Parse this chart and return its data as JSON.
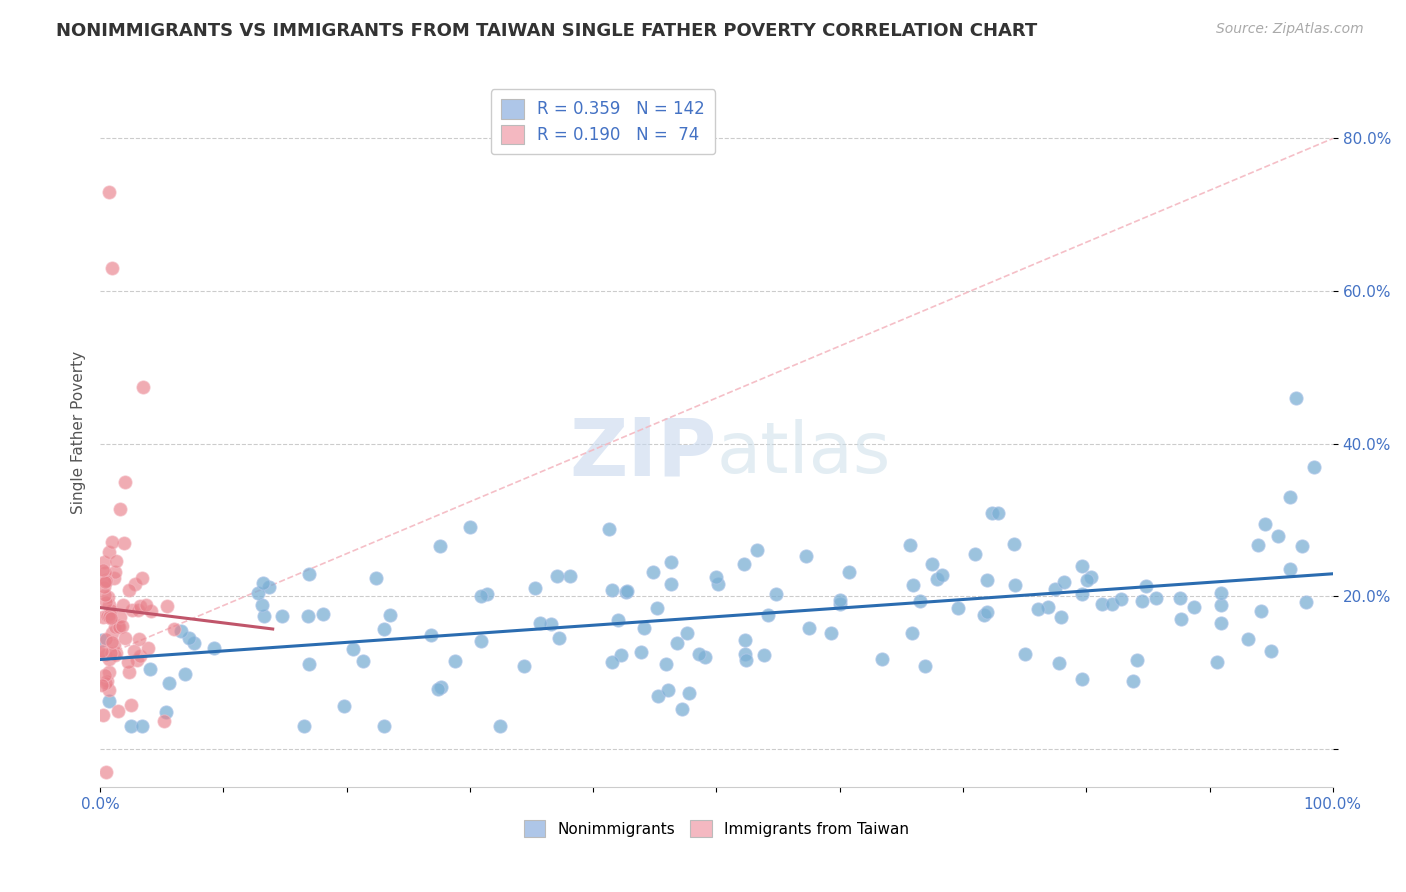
{
  "title": "NONIMMIGRANTS VS IMMIGRANTS FROM TAIWAN SINGLE FATHER POVERTY CORRELATION CHART",
  "source_text": "Source: ZipAtlas.com",
  "ylabel": "Single Father Poverty",
  "xlim": [
    0,
    1.0
  ],
  "ylim": [
    -0.05,
    0.88
  ],
  "xtick_positions": [
    0.0,
    0.1,
    0.2,
    0.3,
    0.4,
    0.5,
    0.6,
    0.7,
    0.8,
    0.9,
    1.0
  ],
  "xtick_labels": [
    "0.0%",
    "",
    "",
    "",
    "",
    "",
    "",
    "",
    "",
    "",
    "100.0%"
  ],
  "ytick_positions": [
    0.0,
    0.2,
    0.4,
    0.6,
    0.8
  ],
  "ytick_labels": [
    "",
    "20.0%",
    "40.0%",
    "60.0%",
    "80.0%"
  ],
  "watermark_zip": "ZIP",
  "watermark_atlas": "atlas",
  "nonimmigrant_color": "#7bafd4",
  "nonimmigrant_edge": "#aec6e8",
  "immigrant_color": "#e8808a",
  "immigrant_edge": "#f4b8c1",
  "trend_nonimmigrant_color": "#2b6cb0",
  "trend_immigrant_color": "#c0556a",
  "diag_line_color": "#f4b8c1",
  "background_color": "#ffffff",
  "grid_color": "#cccccc",
  "legend_box_blue": "#aec6e8",
  "legend_box_pink": "#f4b8c1",
  "legend_text_color": "#4472c4",
  "R_nonimmigrant": 0.359,
  "N_nonimmigrant": 142,
  "R_immigrant": 0.19,
  "N_immigrant": 74,
  "title_fontsize": 13,
  "tick_fontsize": 11,
  "ylabel_fontsize": 11,
  "source_fontsize": 10
}
